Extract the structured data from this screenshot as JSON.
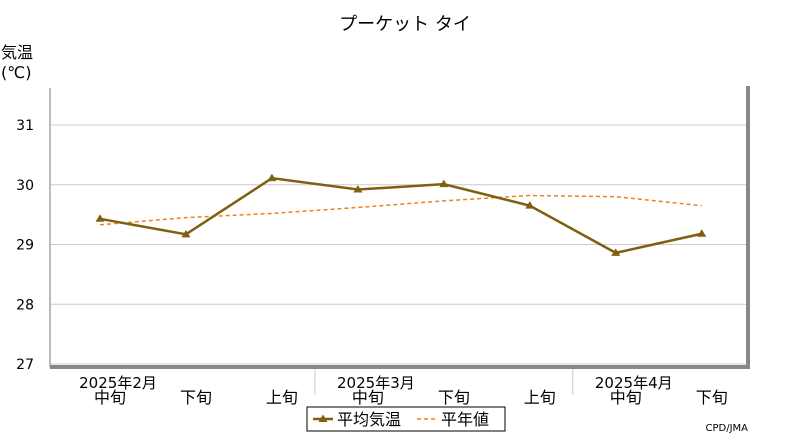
{
  "chart_data": {
    "type": "line",
    "title": "プーケット タイ",
    "ylabel_line1": "気温",
    "ylabel_line2": "(℃)",
    "ylim": [
      27,
      31
    ],
    "yticks": [
      27,
      28,
      29,
      30,
      31
    ],
    "grid": true,
    "categories": [
      "中旬",
      "下旬",
      "上旬",
      "中旬",
      "下旬",
      "上旬",
      "中旬",
      "下旬"
    ],
    "months": [
      "2025年2月",
      "2025年3月",
      "2025年4月"
    ],
    "series": [
      {
        "name": "平均気温",
        "style": "solid-triangle-markers",
        "color": "#806010",
        "values": [
          29.43,
          29.17,
          30.11,
          29.92,
          30.01,
          29.65,
          28.86,
          29.18
        ]
      },
      {
        "name": "平年値",
        "style": "dashed",
        "color": "#f08020",
        "values": [
          29.33,
          29.45,
          29.52,
          29.62,
          29.73,
          29.82,
          29.8,
          29.65
        ]
      }
    ],
    "legend_position": "bottom-center",
    "source": "CPD/JMA"
  }
}
